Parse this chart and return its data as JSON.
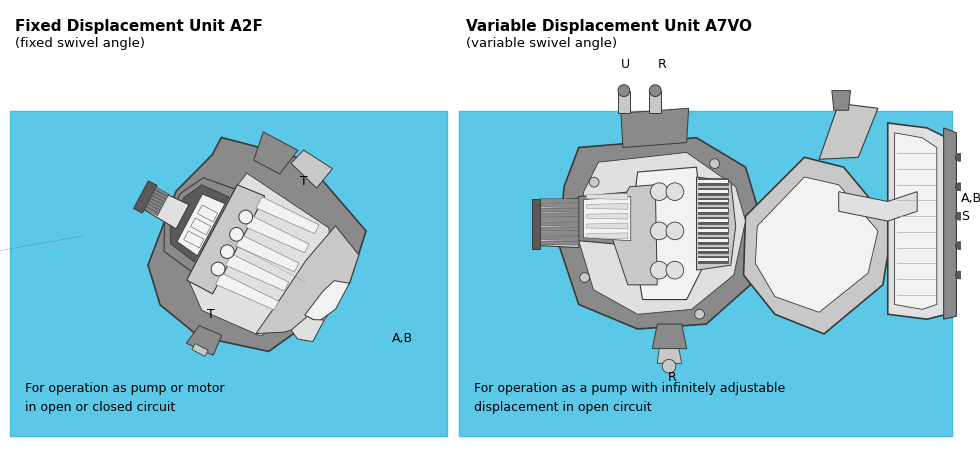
{
  "bg_color": "#ffffff",
  "panel_bg": "#5bc8e8",
  "left_panel": {
    "title_bold": "Fixed Displacement Unit A2F",
    "title_sub": "(fixed swivel angle)",
    "desc_line1": "For operation as pump or motor",
    "desc_line2": "in open or closed circuit"
  },
  "right_panel": {
    "title_bold": "Variable Displacement Unit A7VO",
    "title_sub": "(variable swivel angle)",
    "desc_line1": "For operation as a pump with infinitely adjustable",
    "desc_line2": "displacement in open circuit"
  },
  "colors": {
    "dark_gray": "#5a5a5a",
    "mid_gray": "#8a8a8a",
    "light_gray": "#c8c8c8",
    "lighter_gray": "#e0e0e0",
    "white_part": "#f2f2f2",
    "outline": "#3a3a3a",
    "medium": "#a0a0a0",
    "dark_body": "#6e6e6e"
  }
}
